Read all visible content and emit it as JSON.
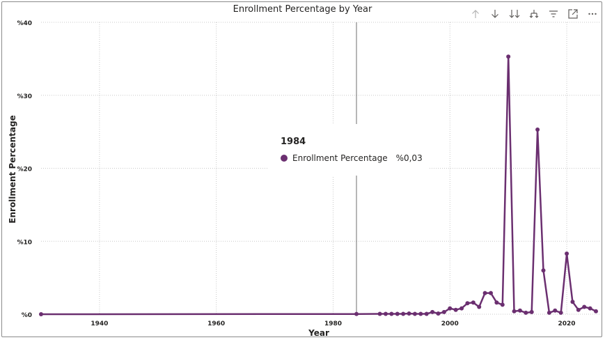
{
  "chart_data": {
    "type": "line",
    "title": "Enrollment Percentage by Year",
    "xlabel": "Year",
    "ylabel": "Enrollment Percentage",
    "xlim": [
      1930,
      2025
    ],
    "ylim": [
      0,
      40
    ],
    "x_ticks": [
      1940,
      1960,
      1980,
      2000,
      2020
    ],
    "y_ticks": [
      {
        "value": 0,
        "label": "%0"
      },
      {
        "value": 10,
        "label": "%10"
      },
      {
        "value": 20,
        "label": "%20"
      },
      {
        "value": 30,
        "label": "%30"
      },
      {
        "value": 40,
        "label": "%40"
      }
    ],
    "grid": true,
    "line_color": "#6B2F70",
    "series": [
      {
        "name": "Enrollment Percentage",
        "points": [
          [
            1930,
            0.0
          ],
          [
            1984,
            0.03
          ],
          [
            1988,
            0.05
          ],
          [
            1989,
            0.05
          ],
          [
            1990,
            0.05
          ],
          [
            1991,
            0.05
          ],
          [
            1992,
            0.05
          ],
          [
            1993,
            0.1
          ],
          [
            1994,
            0.05
          ],
          [
            1995,
            0.05
          ],
          [
            1996,
            0.05
          ],
          [
            1997,
            0.3
          ],
          [
            1998,
            0.1
          ],
          [
            1999,
            0.3
          ],
          [
            2000,
            0.8
          ],
          [
            2001,
            0.6
          ],
          [
            2002,
            0.8
          ],
          [
            2003,
            1.5
          ],
          [
            2004,
            1.6
          ],
          [
            2005,
            1.0
          ],
          [
            2006,
            2.9
          ],
          [
            2007,
            2.9
          ],
          [
            2008,
            1.6
          ],
          [
            2009,
            1.3
          ],
          [
            2010,
            35.3
          ],
          [
            2011,
            0.4
          ],
          [
            2012,
            0.5
          ],
          [
            2013,
            0.2
          ],
          [
            2014,
            0.3
          ],
          [
            2015,
            25.3
          ],
          [
            2016,
            6.0
          ],
          [
            2017,
            0.2
          ],
          [
            2018,
            0.5
          ],
          [
            2019,
            0.2
          ],
          [
            2020,
            8.3
          ],
          [
            2021,
            1.7
          ],
          [
            2022,
            0.6
          ],
          [
            2023,
            1.0
          ],
          [
            2024,
            0.8
          ],
          [
            2025,
            0.4
          ]
        ]
      }
    ],
    "crosshair_x": 1984
  },
  "tooltip": {
    "year": "1984",
    "series_name": "Enrollment Percentage",
    "value": "%0,03"
  },
  "toolbar": [
    {
      "name": "drill-up-icon"
    },
    {
      "name": "drill-down-icon"
    },
    {
      "name": "expand-all-down-icon"
    },
    {
      "name": "expand-hierarchy-icon"
    },
    {
      "name": "filter-icon"
    },
    {
      "name": "focus-mode-icon"
    },
    {
      "name": "more-options-icon"
    }
  ]
}
